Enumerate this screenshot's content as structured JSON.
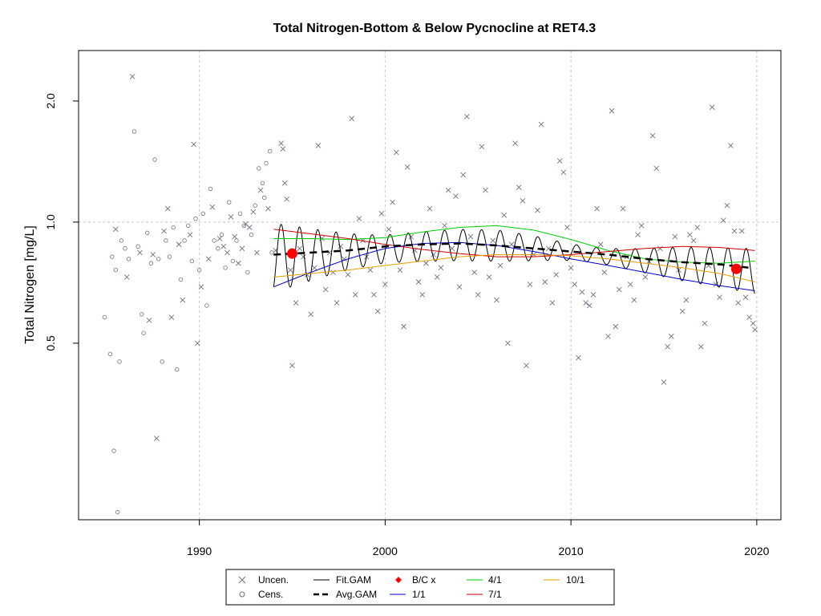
{
  "chart_data": {
    "type": "scatter",
    "title": "Total Nitrogen-Bottom & Below Pycnocline at RET4.3",
    "xlabel": "",
    "ylabel": "Total Nitrogen [mg/L]",
    "xlim": [
      1983.5,
      2021.3
    ],
    "ylim": [
      0.182,
      2.67
    ],
    "y_scale": "log",
    "grid": true,
    "x_ticks": [
      1990,
      2000,
      2010,
      2020
    ],
    "x_tick_labels": [
      "1990",
      "2000",
      "2010",
      "2020"
    ],
    "y_ticks": [
      0.5,
      1.0,
      2.0
    ],
    "y_tick_labels": [
      "0.5",
      "1.0",
      "2.0"
    ],
    "legend_placement": "bottom",
    "legend": {
      "uncen": "Uncen.",
      "cens": "Cens.",
      "fit_gam": "Fit.GAM",
      "avg_gam": "Avg.GAM",
      "bc": "B/C x",
      "jan": "1/1",
      "apr": "4/1",
      "jul": "7/1",
      "oct": "10/1"
    },
    "colors": {
      "points": "#6b7280",
      "fit_gam": "#000000",
      "avg_gam": "#000000",
      "bc": "#ff0000",
      "jan": "#0000cd",
      "apr": "#00cd00",
      "jul": "#cd0000",
      "oct": "#e69f00"
    },
    "censored_points": [
      [
        1984.9,
        0.58
      ],
      [
        1985.2,
        0.47
      ],
      [
        1985.4,
        0.27
      ],
      [
        1985.6,
        0.19
      ],
      [
        1985.7,
        0.45
      ],
      [
        1985.3,
        0.82
      ],
      [
        1985.5,
        0.76
      ],
      [
        1985.8,
        0.9
      ],
      [
        1986.0,
        0.86
      ],
      [
        1986.2,
        0.81
      ],
      [
        1986.5,
        1.68
      ],
      [
        1986.7,
        0.87
      ],
      [
        1986.9,
        0.59
      ],
      [
        1987.0,
        0.53
      ],
      [
        1987.2,
        0.94
      ],
      [
        1987.4,
        0.79
      ],
      [
        1987.6,
        1.43
      ],
      [
        1987.8,
        0.81
      ],
      [
        1988.0,
        0.45
      ],
      [
        1988.2,
        0.9
      ],
      [
        1988.4,
        0.82
      ],
      [
        1988.6,
        0.97
      ],
      [
        1988.8,
        0.43
      ],
      [
        1989.0,
        0.72
      ],
      [
        1989.2,
        0.9
      ],
      [
        1989.4,
        0.98
      ],
      [
        1989.6,
        0.8
      ],
      [
        1989.8,
        1.02
      ],
      [
        1990.0,
        0.76
      ],
      [
        1990.2,
        1.05
      ],
      [
        1990.4,
        0.62
      ],
      [
        1990.6,
        1.21
      ],
      [
        1990.8,
        0.9
      ],
      [
        1991.0,
        0.86
      ],
      [
        1991.2,
        0.93
      ],
      [
        1991.4,
        0.77
      ],
      [
        1991.6,
        1.12
      ],
      [
        1991.8,
        0.8
      ],
      [
        1992.0,
        0.9
      ],
      [
        1992.2,
        1.05
      ],
      [
        1992.4,
        0.98
      ],
      [
        1992.6,
        0.75
      ],
      [
        1992.8,
        0.93
      ],
      [
        1993.0,
        1.1
      ],
      [
        1993.2,
        1.36
      ],
      [
        1993.4,
        1.25
      ],
      [
        1993.6,
        1.4
      ],
      [
        1993.8,
        1.5
      ],
      [
        1993.5,
        1.15
      ],
      [
        1993.9,
        0.84
      ]
    ],
    "uncensored_points": [
      [
        1986.4,
        2.3
      ],
      [
        1985.5,
        0.96
      ],
      [
        1986.1,
        0.73
      ],
      [
        1986.8,
        0.84
      ],
      [
        1987.3,
        0.57
      ],
      [
        1987.5,
        0.83
      ],
      [
        1987.7,
        0.29
      ],
      [
        1988.1,
        0.95
      ],
      [
        1988.3,
        1.08
      ],
      [
        1988.5,
        0.58
      ],
      [
        1988.9,
        0.88
      ],
      [
        1989.1,
        0.64
      ],
      [
        1989.5,
        0.93
      ],
      [
        1989.7,
        1.56
      ],
      [
        1989.9,
        0.5
      ],
      [
        1990.1,
        0.69
      ],
      [
        1990.5,
        0.81
      ],
      [
        1990.7,
        1.09
      ],
      [
        1991.1,
        0.91
      ],
      [
        1991.3,
        0.87
      ],
      [
        1991.5,
        0.84
      ],
      [
        1991.7,
        1.03
      ],
      [
        1991.9,
        0.92
      ],
      [
        1992.1,
        0.79
      ],
      [
        1992.3,
        0.86
      ],
      [
        1992.5,
        0.99
      ],
      [
        1992.7,
        0.97
      ],
      [
        1992.9,
        1.06
      ],
      [
        1993.1,
        0.84
      ],
      [
        1993.3,
        1.2
      ],
      [
        1993.7,
        1.08
      ],
      [
        1994.1,
        0.85
      ],
      [
        1994.4,
        1.57
      ],
      [
        1994.5,
        1.52
      ],
      [
        1994.6,
        1.25
      ],
      [
        1994.7,
        1.14
      ],
      [
        1994.9,
        0.76
      ],
      [
        1995.0,
        0.44
      ],
      [
        1995.2,
        0.63
      ],
      [
        1995.4,
        0.86
      ],
      [
        1995.6,
        0.82
      ],
      [
        1995.8,
        0.74
      ],
      [
        1996.0,
        0.59
      ],
      [
        1996.2,
        0.77
      ],
      [
        1996.4,
        1.55
      ],
      [
        1996.6,
        0.91
      ],
      [
        1996.8,
        0.68
      ],
      [
        1997.0,
        0.84
      ],
      [
        1997.2,
        0.75
      ],
      [
        1997.4,
        0.63
      ],
      [
        1997.6,
        0.87
      ],
      [
        1997.8,
        0.81
      ],
      [
        1998.0,
        0.74
      ],
      [
        1998.2,
        1.81
      ],
      [
        1998.4,
        0.66
      ],
      [
        1998.6,
        1.02
      ],
      [
        1998.8,
        0.9
      ],
      [
        1999.0,
        0.82
      ],
      [
        1999.2,
        0.76
      ],
      [
        1999.4,
        0.66
      ],
      [
        1999.6,
        0.6
      ],
      [
        1999.8,
        1.05
      ],
      [
        2000.0,
        0.7
      ],
      [
        2000.2,
        0.96
      ],
      [
        2000.4,
        1.12
      ],
      [
        2000.6,
        1.49
      ],
      [
        2000.8,
        0.76
      ],
      [
        2001.0,
        0.55
      ],
      [
        2001.2,
        1.37
      ],
      [
        2001.4,
        0.92
      ],
      [
        2001.6,
        0.85
      ],
      [
        2001.8,
        0.71
      ],
      [
        2002.0,
        0.66
      ],
      [
        2002.2,
        0.79
      ],
      [
        2002.4,
        1.08
      ],
      [
        2002.6,
        0.83
      ],
      [
        2002.8,
        0.73
      ],
      [
        2003.0,
        0.77
      ],
      [
        2003.2,
        0.98
      ],
      [
        2003.4,
        1.2
      ],
      [
        2003.6,
        0.86
      ],
      [
        2003.8,
        1.16
      ],
      [
        2004.0,
        0.69
      ],
      [
        2004.2,
        1.31
      ],
      [
        2004.4,
        1.83
      ],
      [
        2004.6,
        0.92
      ],
      [
        2004.8,
        0.75
      ],
      [
        2005.0,
        0.66
      ],
      [
        2005.2,
        1.54
      ],
      [
        2005.4,
        1.2
      ],
      [
        2005.6,
        0.73
      ],
      [
        2005.8,
        0.9
      ],
      [
        2006.0,
        0.64
      ],
      [
        2006.2,
        0.78
      ],
      [
        2006.4,
        1.04
      ],
      [
        2006.6,
        0.5
      ],
      [
        2006.8,
        0.88
      ],
      [
        2007.0,
        1.57
      ],
      [
        2007.2,
        1.22
      ],
      [
        2007.4,
        1.13
      ],
      [
        2007.6,
        0.44
      ],
      [
        2007.8,
        0.7
      ],
      [
        2008.0,
        0.83
      ],
      [
        2008.2,
        1.07
      ],
      [
        2008.4,
        1.75
      ],
      [
        2008.6,
        0.71
      ],
      [
        2008.8,
        0.86
      ],
      [
        2009.0,
        0.63
      ],
      [
        2009.2,
        0.74
      ],
      [
        2009.4,
        1.42
      ],
      [
        2009.6,
        1.33
      ],
      [
        2009.8,
        0.97
      ],
      [
        2010.0,
        0.77
      ],
      [
        2010.2,
        0.7
      ],
      [
        2010.4,
        0.46
      ],
      [
        2010.6,
        0.67
      ],
      [
        2010.8,
        0.63
      ],
      [
        2011.0,
        0.62
      ],
      [
        2011.2,
        0.66
      ],
      [
        2011.4,
        1.08
      ],
      [
        2011.6,
        0.88
      ],
      [
        2011.8,
        0.75
      ],
      [
        2012.0,
        0.52
      ],
      [
        2012.2,
        1.89
      ],
      [
        2012.4,
        0.55
      ],
      [
        2012.6,
        0.68
      ],
      [
        2012.8,
        1.08
      ],
      [
        2013.0,
        0.82
      ],
      [
        2013.2,
        0.7
      ],
      [
        2013.4,
        0.64
      ],
      [
        2013.6,
        0.93
      ],
      [
        2013.8,
        0.98
      ],
      [
        2014.0,
        0.73
      ],
      [
        2014.2,
        0.8
      ],
      [
        2014.4,
        1.64
      ],
      [
        2014.6,
        1.36
      ],
      [
        2014.8,
        0.86
      ],
      [
        2015.0,
        0.4
      ],
      [
        2015.2,
        0.49
      ],
      [
        2015.4,
        0.52
      ],
      [
        2015.6,
        0.92
      ],
      [
        2015.8,
        0.76
      ],
      [
        2016.0,
        0.6
      ],
      [
        2016.2,
        0.64
      ],
      [
        2016.4,
        0.93
      ],
      [
        2016.6,
        0.9
      ],
      [
        2016.8,
        0.97
      ],
      [
        2017.0,
        0.49
      ],
      [
        2017.2,
        0.56
      ],
      [
        2017.4,
        0.78
      ],
      [
        2017.6,
        1.93
      ],
      [
        2017.8,
        0.7
      ],
      [
        2018.0,
        0.65
      ],
      [
        2018.2,
        1.01
      ],
      [
        2018.4,
        1.1
      ],
      [
        2018.6,
        1.55
      ],
      [
        2018.8,
        0.95
      ],
      [
        2019.0,
        0.63
      ],
      [
        2019.2,
        0.95
      ],
      [
        2019.4,
        0.65
      ],
      [
        2019.6,
        0.58
      ],
      [
        2019.8,
        0.56
      ],
      [
        2019.9,
        0.54
      ]
    ],
    "fit_gam": {
      "x_start": 1994.0,
      "x_end": 2019.9,
      "note_cycles": "annual"
    },
    "avg_gam": {
      "x": [
        1994.0,
        1996.0,
        1998.0,
        2000.0,
        2002.0,
        2004.0,
        2006.0,
        2008.0,
        2010.0,
        2012.0,
        2014.0,
        2016.0,
        2018.0,
        2019.6
      ],
      "y": [
        0.83,
        0.84,
        0.85,
        0.87,
        0.88,
        0.885,
        0.875,
        0.86,
        0.845,
        0.83,
        0.81,
        0.795,
        0.785,
        0.77
      ]
    },
    "seasonal_series": [
      {
        "key": "jan",
        "x": [
          1994.0,
          1996.0,
          1998.0,
          2000.0,
          2002.0,
          2004.0,
          2006.0,
          2008.0,
          2010.0,
          2012.0,
          2014.0,
          2016.0,
          2018.0,
          2019.9
        ],
        "y": [
          0.69,
          0.75,
          0.81,
          0.86,
          0.885,
          0.89,
          0.875,
          0.845,
          0.81,
          0.78,
          0.75,
          0.72,
          0.695,
          0.675
        ]
      },
      {
        "key": "apr",
        "x": [
          1994.0,
          1996.0,
          1998.0,
          2000.0,
          2002.0,
          2004.0,
          2006.0,
          2008.0,
          2010.0,
          2012.0,
          2014.0,
          2016.0,
          2018.0,
          2019.9
        ],
        "y": [
          0.91,
          0.91,
          0.905,
          0.915,
          0.945,
          0.97,
          0.98,
          0.955,
          0.905,
          0.85,
          0.81,
          0.795,
          0.79,
          0.8
        ]
      },
      {
        "key": "jul",
        "x": [
          1994.0,
          1996.0,
          1998.0,
          2000.0,
          2002.0,
          2004.0,
          2006.0,
          2008.0,
          2010.0,
          2012.0,
          2014.0,
          2016.0,
          2018.0,
          2019.9
        ],
        "y": [
          0.96,
          0.935,
          0.91,
          0.88,
          0.855,
          0.835,
          0.82,
          0.82,
          0.83,
          0.845,
          0.86,
          0.87,
          0.865,
          0.85
        ]
      },
      {
        "key": "oct",
        "x": [
          1994.0,
          1996.0,
          1998.0,
          2000.0,
          2002.0,
          2004.0,
          2006.0,
          2008.0,
          2010.0,
          2012.0,
          2014.0,
          2016.0,
          2018.0,
          2019.9
        ],
        "y": [
          0.73,
          0.745,
          0.76,
          0.78,
          0.8,
          0.82,
          0.83,
          0.83,
          0.825,
          0.81,
          0.79,
          0.77,
          0.745,
          0.71
        ]
      }
    ],
    "bc_points": [
      {
        "x": 1995.0,
        "y": 0.835
      },
      {
        "x": 2018.9,
        "y": 0.765
      }
    ]
  }
}
